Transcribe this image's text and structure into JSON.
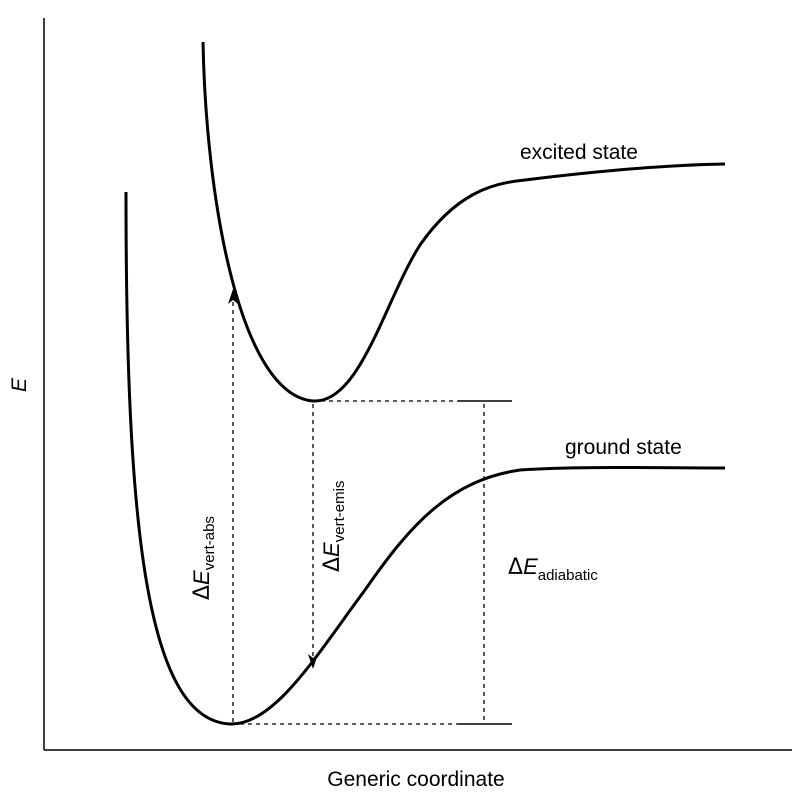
{
  "axes": {
    "xlabel": "Generic coordinate",
    "ylabel": "E"
  },
  "curves": {
    "excited_label": "excited state",
    "ground_label": "ground state"
  },
  "transitions": {
    "delta_symbol": "Δ",
    "energy_symbol": "E",
    "vertical_absorption_subscript": "vert-abs",
    "vertical_emission_subscript": "vert-emis",
    "adiabatic_subscript": "adiabatic"
  },
  "colors": {
    "line": "#000000",
    "background": "#ffffff"
  }
}
